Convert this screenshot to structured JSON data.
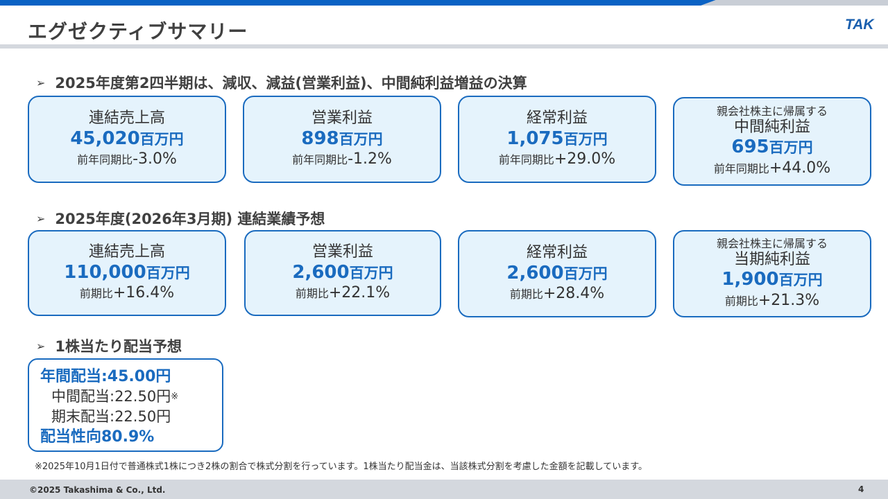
{
  "header": {
    "title": "エグゼクティブサマリー",
    "logo_text": "TAK"
  },
  "sections": {
    "q2": {
      "heading": "2025年度第2四半期は、減収、減益(営業利益)、中間純利益増益の決算"
    },
    "forecast": {
      "heading": "2025年度(2026年3月期) 連結業績予想"
    },
    "dividend": {
      "heading": "1株当たり配当予想"
    }
  },
  "q2_cards": [
    {
      "label": "連結売上高",
      "value": "45,020",
      "unit": "百万円",
      "yoy_label": "前年同期比",
      "yoy": "-3.0%"
    },
    {
      "label": "営業利益",
      "value": "898",
      "unit": "百万円",
      "yoy_label": "前年同期比",
      "yoy": "-1.2%"
    },
    {
      "label": "経常利益",
      "value": "1,075",
      "unit": "百万円",
      "yoy_label": "前年同期比",
      "yoy": "+29.0%"
    },
    {
      "pre": "親会社株主に帰属する",
      "label": "中間純利益",
      "value": "695",
      "unit": "百万円",
      "yoy_label": "前年同期比",
      "yoy": "+44.0%"
    }
  ],
  "forecast_cards": [
    {
      "label": "連結売上高",
      "value": "110,000",
      "unit": "百万円",
      "yoy_label": "前期比",
      "yoy": "+16.4%"
    },
    {
      "label": "営業利益",
      "value": "2,600",
      "unit": "百万円",
      "yoy_label": "前期比",
      "yoy": "+22.1%"
    },
    {
      "label": "経常利益",
      "value": "2,600",
      "unit": "百万円",
      "yoy_label": "前期比",
      "yoy": "+28.4%"
    },
    {
      "pre": "親会社株主に帰属する",
      "label": "当期純利益",
      "value": "1,900",
      "unit": "百万円",
      "yoy_label": "前期比",
      "yoy": "+21.3%"
    }
  ],
  "dividend": {
    "annual": "年間配当:45.00円",
    "interim": "中間配当:22.50円",
    "interim_mark": "※",
    "year_end": "期末配当:22.50円",
    "payout": "配当性向80.9%"
  },
  "footnote": "※2025年10月1日付で普通株式1株につき2株の割合で株式分割を行っています。1株当たり配当金は、当該株式分割を考慮した金額を記載しています。",
  "footer": {
    "copyright": "©2025 Takashima & Co., Ltd.",
    "page": "4"
  },
  "colors": {
    "accent": "#1a6bbf",
    "card_bg": "#e5f3fc",
    "top_bar": "#0a62c4"
  }
}
